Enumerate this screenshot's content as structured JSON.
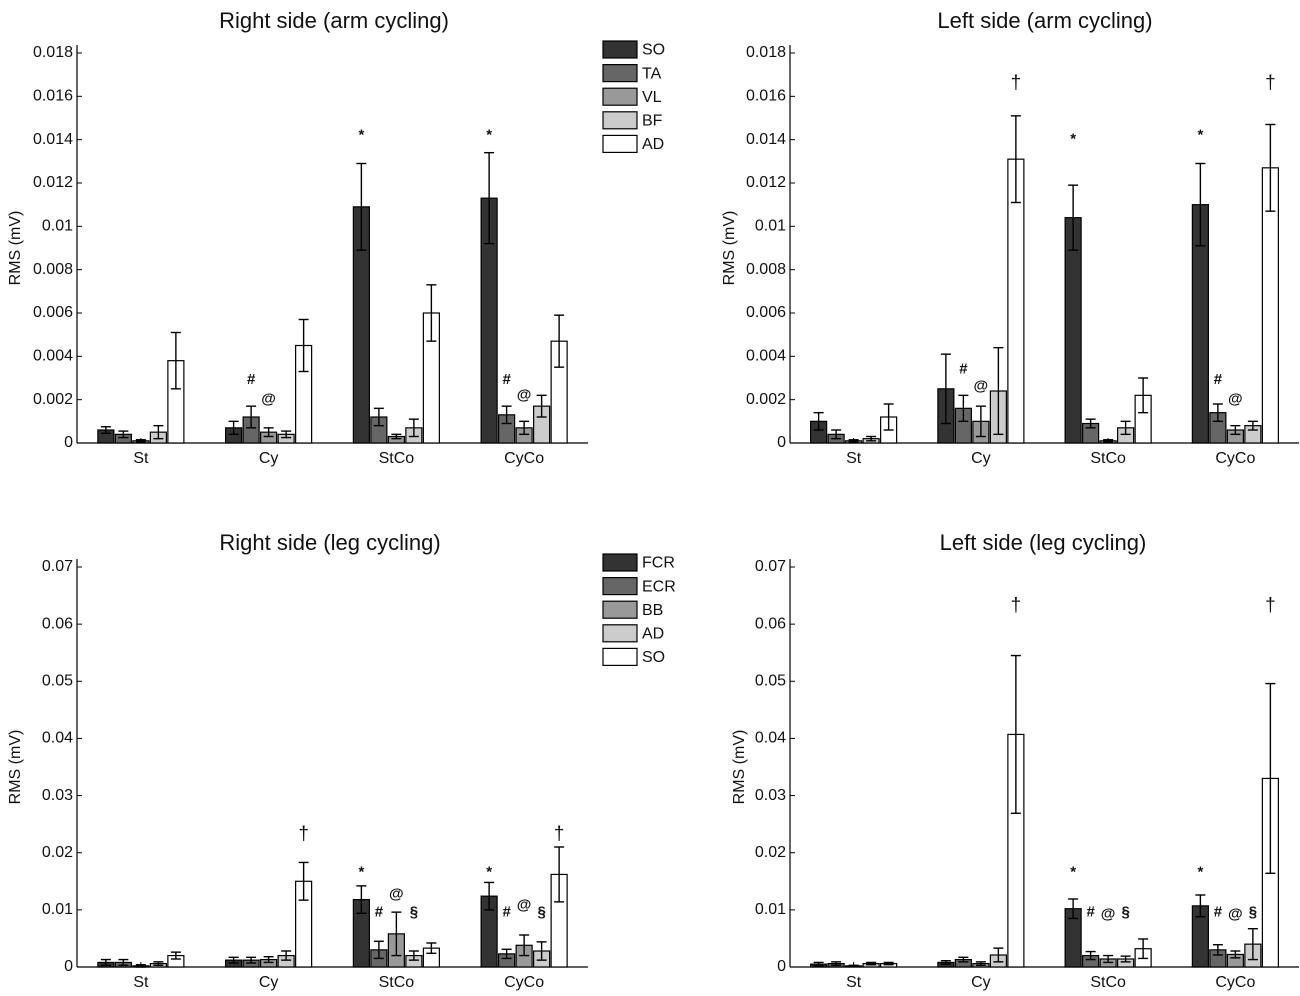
{
  "chart_data": [
    {
      "type": "bar",
      "title": "Right side (arm cycling)",
      "ylabel": "RMS (mV)",
      "xlabel": "",
      "ylim": [
        0,
        0.018
      ],
      "yticks": [
        "0",
        "0.002",
        "0.004",
        "0.006",
        "0.008",
        "0.01",
        "0.012",
        "0.014",
        "0.016",
        "0.018"
      ],
      "categories": [
        "St",
        "Cy",
        "StCo",
        "CyCo"
      ],
      "series": [
        {
          "name": "SO",
          "color": "#333333",
          "values": [
            0.0006,
            0.0007,
            0.0109,
            0.0113
          ],
          "errors": [
            0.00015,
            0.0003,
            0.002,
            0.0021
          ]
        },
        {
          "name": "TA",
          "color": "#666666",
          "values": [
            0.0004,
            0.0012,
            0.0012,
            0.0013
          ],
          "errors": [
            0.00015,
            0.0005,
            0.0004,
            0.0004
          ]
        },
        {
          "name": "VL",
          "color": "#999999",
          "values": [
            0.0001,
            0.0005,
            0.0003,
            0.0007
          ],
          "errors": [
            5e-05,
            0.0002,
            0.0001,
            0.0003
          ]
        },
        {
          "name": "BF",
          "color": "#cccccc",
          "values": [
            0.0005,
            0.0004,
            0.0007,
            0.0017
          ],
          "errors": [
            0.0003,
            0.00015,
            0.0004,
            0.0005
          ]
        },
        {
          "name": "AD",
          "color": "#ffffff",
          "values": [
            0.0038,
            0.0045,
            0.006,
            0.0047
          ],
          "errors": [
            0.0013,
            0.0012,
            0.0013,
            0.0012
          ]
        }
      ],
      "legend": {
        "position": "top-right",
        "labels": [
          "SO",
          "TA",
          "VL",
          "BF",
          "AD"
        ]
      },
      "annotations": [
        {
          "text": "*",
          "category": 2,
          "series": 0,
          "y": 0.0142
        },
        {
          "text": "*",
          "category": 3,
          "series": 0,
          "y": 0.0142
        },
        {
          "text": "#",
          "category": 1,
          "series": 1,
          "y": 0.0029
        },
        {
          "text": "@",
          "category": 1,
          "series": 2,
          "y": 0.002
        },
        {
          "text": "#",
          "category": 3,
          "series": 1,
          "y": 0.0029
        },
        {
          "text": "@",
          "category": 3,
          "series": 2,
          "y": 0.0022
        }
      ]
    },
    {
      "type": "bar",
      "title": "Left side (arm cycling)",
      "ylabel": "RMS (mV)",
      "xlabel": "",
      "ylim": [
        0,
        0.018
      ],
      "yticks": [
        "0",
        "0.002",
        "0.004",
        "0.006",
        "0.008",
        "0.01",
        "0.012",
        "0.014",
        "0.016",
        "0.018"
      ],
      "categories": [
        "St",
        "Cy",
        "StCo",
        "CyCo"
      ],
      "series": [
        {
          "name": "SO",
          "color": "#333333",
          "values": [
            0.001,
            0.0025,
            0.0104,
            0.011
          ],
          "errors": [
            0.0004,
            0.0016,
            0.0015,
            0.0019
          ]
        },
        {
          "name": "TA",
          "color": "#666666",
          "values": [
            0.0004,
            0.0016,
            0.0009,
            0.0014
          ],
          "errors": [
            0.0002,
            0.0006,
            0.0002,
            0.0004
          ]
        },
        {
          "name": "VL",
          "color": "#999999",
          "values": [
            0.0001,
            0.001,
            0.0001,
            0.0006
          ],
          "errors": [
            5e-05,
            0.0007,
            5e-05,
            0.0002
          ]
        },
        {
          "name": "BF",
          "color": "#cccccc",
          "values": [
            0.0002,
            0.0024,
            0.0007,
            0.0008
          ],
          "errors": [
            0.0001,
            0.002,
            0.0003,
            0.0002
          ]
        },
        {
          "name": "AD",
          "color": "#ffffff",
          "values": [
            0.0012,
            0.0131,
            0.0022,
            0.0127
          ],
          "errors": [
            0.0006,
            0.002,
            0.0008,
            0.002
          ]
        }
      ],
      "annotations": [
        {
          "text": "†",
          "category": 1,
          "series": 4,
          "y": 0.0166
        },
        {
          "text": "†",
          "category": 3,
          "series": 4,
          "y": 0.0166
        },
        {
          "text": "*",
          "category": 2,
          "series": 0,
          "y": 0.014
        },
        {
          "text": "*",
          "category": 3,
          "series": 0,
          "y": 0.0142
        },
        {
          "text": "#",
          "category": 1,
          "series": 1,
          "y": 0.0034
        },
        {
          "text": "@",
          "category": 1,
          "series": 2,
          "y": 0.0026
        },
        {
          "text": "#",
          "category": 3,
          "series": 1,
          "y": 0.0029
        },
        {
          "text": "@",
          "category": 3,
          "series": 2,
          "y": 0.002
        }
      ]
    },
    {
      "type": "bar",
      "title": "Right side (leg cycling)",
      "ylabel": "RMS (mV)",
      "xlabel": "",
      "ylim": [
        0,
        0.07
      ],
      "yticks": [
        "0",
        "0.01",
        "0.02",
        "0.03",
        "0.04",
        "0.05",
        "0.06",
        "0.07"
      ],
      "categories": [
        "St",
        "Cy",
        "StCo",
        "CyCo"
      ],
      "series": [
        {
          "name": "FCR",
          "color": "#333333",
          "values": [
            0.0008,
            0.0012,
            0.0118,
            0.0124
          ],
          "errors": [
            0.0005,
            0.0005,
            0.0024,
            0.0024
          ]
        },
        {
          "name": "ECR",
          "color": "#666666",
          "values": [
            0.0008,
            0.0012,
            0.003,
            0.0023
          ],
          "errors": [
            0.0005,
            0.0005,
            0.0015,
            0.0008
          ]
        },
        {
          "name": "BB",
          "color": "#999999",
          "values": [
            0.0002,
            0.0013,
            0.0058,
            0.0038
          ],
          "errors": [
            0.0002,
            0.0005,
            0.0038,
            0.0018
          ]
        },
        {
          "name": "AD",
          "color": "#cccccc",
          "values": [
            0.0006,
            0.002,
            0.002,
            0.0028
          ],
          "errors": [
            0.0003,
            0.0008,
            0.0008,
            0.0016
          ]
        },
        {
          "name": "SO",
          "color": "#ffffff",
          "values": [
            0.002,
            0.015,
            0.0033,
            0.0162
          ],
          "errors": [
            0.0006,
            0.0033,
            0.0009,
            0.0048
          ]
        }
      ],
      "legend": {
        "position": "top-right",
        "labels": [
          "FCR",
          "ECR",
          "BB",
          "AD",
          "SO"
        ]
      },
      "annotations": [
        {
          "text": "†",
          "category": 1,
          "series": 4,
          "y": 0.0232
        },
        {
          "text": "†",
          "category": 3,
          "series": 4,
          "y": 0.0232
        },
        {
          "text": "*",
          "category": 2,
          "series": 0,
          "y": 0.0165
        },
        {
          "text": "*",
          "category": 3,
          "series": 0,
          "y": 0.0165
        },
        {
          "text": "#",
          "category": 2,
          "series": 1,
          "y": 0.0095
        },
        {
          "text": "@",
          "category": 2,
          "series": 2,
          "y": 0.0127
        },
        {
          "text": "§",
          "category": 2,
          "series": 3,
          "y": 0.0095
        },
        {
          "text": "#",
          "category": 3,
          "series": 1,
          "y": 0.0095
        },
        {
          "text": "@",
          "category": 3,
          "series": 2,
          "y": 0.0108
        },
        {
          "text": "§",
          "category": 3,
          "series": 3,
          "y": 0.0095
        }
      ]
    },
    {
      "type": "bar",
      "title": "Left side (leg cycling)",
      "ylabel": "RMS (mV)",
      "xlabel": "",
      "ylim": [
        0,
        0.07
      ],
      "yticks": [
        "0",
        "0.01",
        "0.02",
        "0.03",
        "0.04",
        "0.05",
        "0.06",
        "0.07"
      ],
      "categories": [
        "St",
        "Cy",
        "StCo",
        "CyCo"
      ],
      "series": [
        {
          "name": "FCR",
          "color": "#333333",
          "values": [
            0.0005,
            0.0008,
            0.0102,
            0.0107
          ],
          "errors": [
            0.0003,
            0.0003,
            0.0017,
            0.0019
          ]
        },
        {
          "name": "ECR",
          "color": "#666666",
          "values": [
            0.0006,
            0.0013,
            0.002,
            0.003
          ],
          "errors": [
            0.0003,
            0.0004,
            0.0007,
            0.0009
          ]
        },
        {
          "name": "BB",
          "color": "#999999",
          "values": [
            0.0002,
            0.0006,
            0.0014,
            0.0022
          ],
          "errors": [
            0.0001,
            0.0003,
            0.0006,
            0.0006
          ]
        },
        {
          "name": "AD",
          "color": "#cccccc",
          "values": [
            0.0006,
            0.0021,
            0.0014,
            0.004
          ],
          "errors": [
            0.0002,
            0.0012,
            0.0005,
            0.0027
          ]
        },
        {
          "name": "SO",
          "color": "#ffffff",
          "values": [
            0.0006,
            0.0407,
            0.0032,
            0.033
          ],
          "errors": [
            0.0002,
            0.0138,
            0.0017,
            0.0166
          ]
        }
      ],
      "annotations": [
        {
          "text": "†",
          "category": 1,
          "series": 4,
          "y": 0.0632
        },
        {
          "text": "†",
          "category": 3,
          "series": 4,
          "y": 0.0632
        },
        {
          "text": "*",
          "category": 2,
          "series": 0,
          "y": 0.0165
        },
        {
          "text": "*",
          "category": 3,
          "series": 0,
          "y": 0.0165
        },
        {
          "text": "#",
          "category": 2,
          "series": 1,
          "y": 0.0095
        },
        {
          "text": "@",
          "category": 2,
          "series": 2,
          "y": 0.0092
        },
        {
          "text": "§",
          "category": 2,
          "series": 3,
          "y": 0.0095
        },
        {
          "text": "#",
          "category": 3,
          "series": 1,
          "y": 0.0095
        },
        {
          "text": "@",
          "category": 3,
          "series": 2,
          "y": 0.0092
        },
        {
          "text": "§",
          "category": 3,
          "series": 3,
          "y": 0.0095
        }
      ]
    }
  ]
}
